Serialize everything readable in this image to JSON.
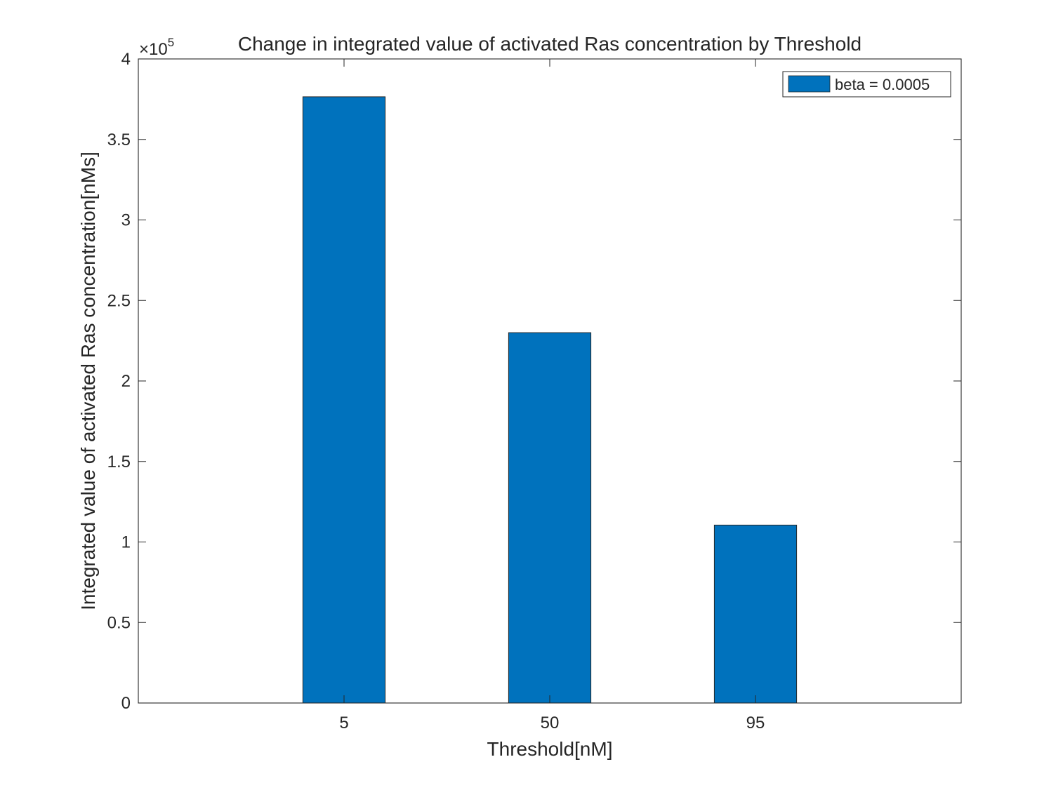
{
  "chart_data": {
    "type": "bar",
    "title": "Change in integrated value of activated Ras concentration by Threshold",
    "xlabel": "Threshold[nM]",
    "ylabel": "Integrated value of activated Ras concentration[nMs]",
    "categories": [
      "5",
      "50",
      "95"
    ],
    "series": [
      {
        "name": "beta = 0.0005",
        "values": [
          376500,
          230000,
          110500
        ],
        "color": "#0072BD"
      }
    ],
    "ylim": [
      0,
      400000
    ],
    "yticks": [
      0,
      50000,
      100000,
      150000,
      200000,
      250000,
      300000,
      350000,
      400000
    ],
    "ytick_labels": [
      "0",
      "0.5",
      "1",
      "1.5",
      "2",
      "2.5",
      "3",
      "3.5",
      "4"
    ],
    "y_exponent_base": "×10",
    "y_exponent_power": "5",
    "grid": false,
    "legend_position": "top-right"
  }
}
